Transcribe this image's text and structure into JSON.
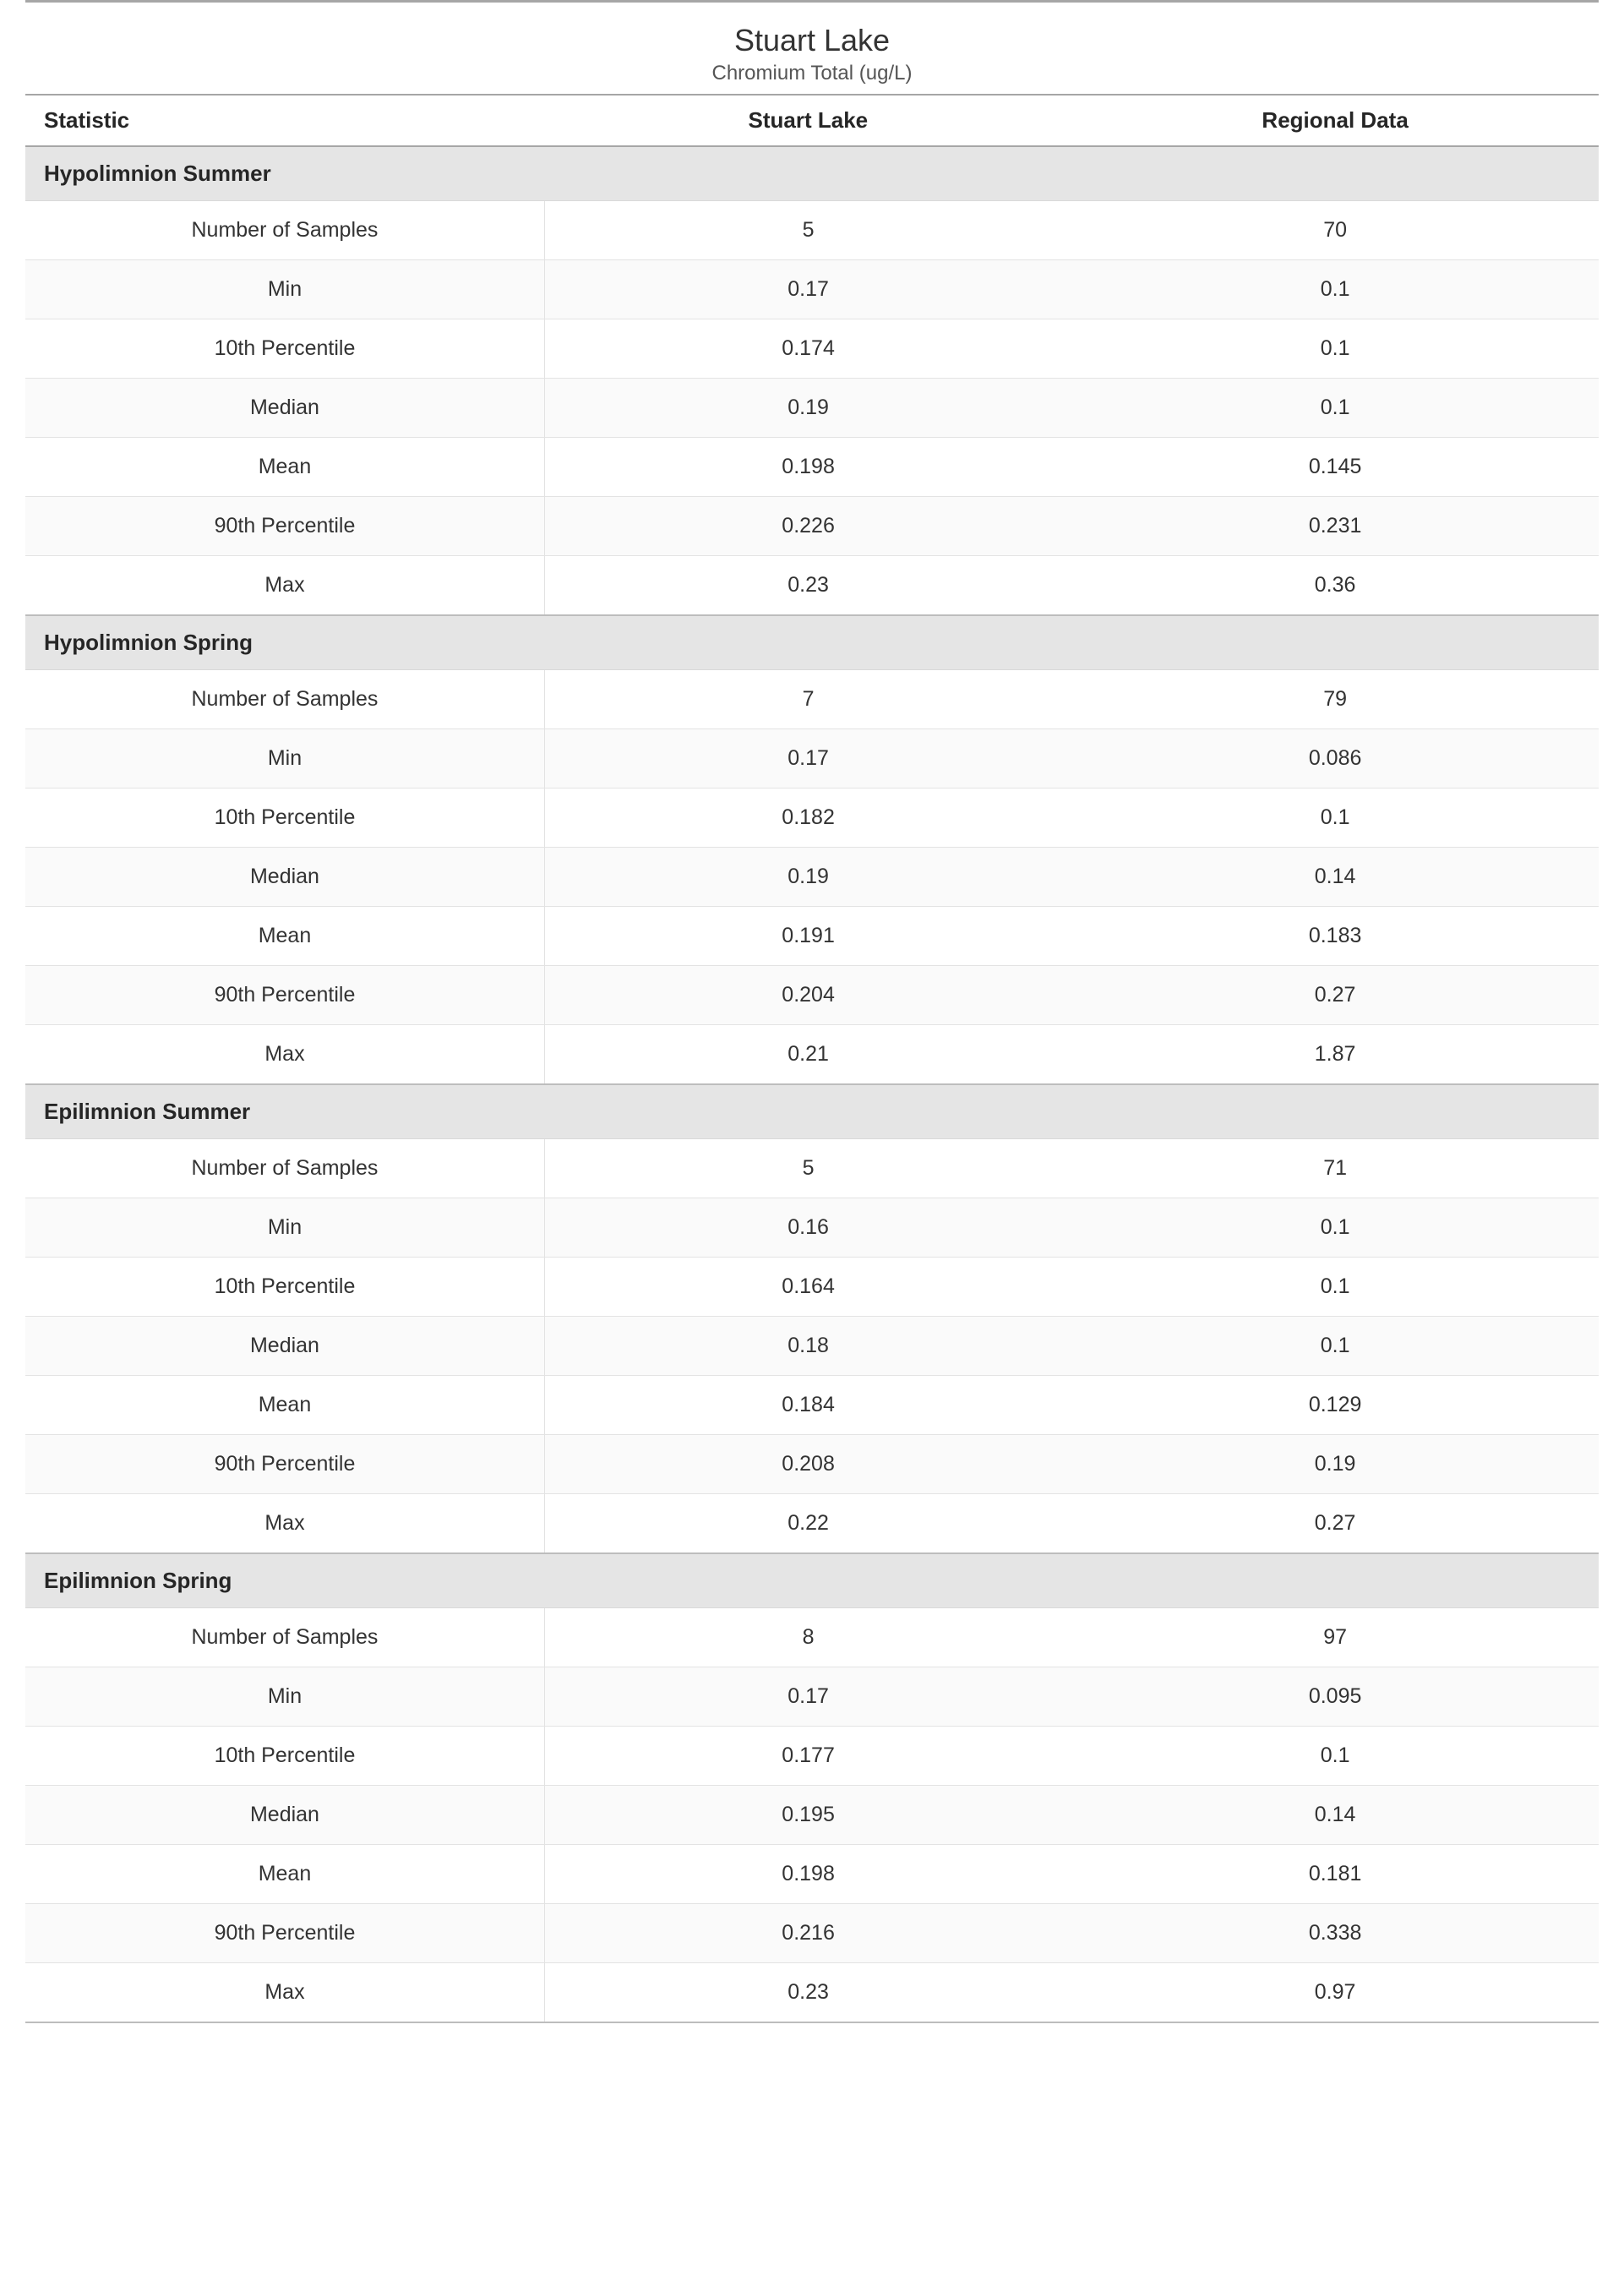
{
  "type": "table",
  "title": "Stuart Lake",
  "subtitle": "Chromium Total (ug/L)",
  "columns": [
    "Statistic",
    "Stuart Lake",
    "Regional Data"
  ],
  "column_alignment": [
    "left",
    "center",
    "center"
  ],
  "row_labels": [
    "Number of Samples",
    "Min",
    "10th Percentile",
    "Median",
    "Mean",
    "90th Percentile",
    "Max"
  ],
  "sections": [
    {
      "name": "Hypolimnion Summer",
      "rows": [
        [
          "5",
          "70"
        ],
        [
          "0.17",
          "0.1"
        ],
        [
          "0.174",
          "0.1"
        ],
        [
          "0.19",
          "0.1"
        ],
        [
          "0.198",
          "0.145"
        ],
        [
          "0.226",
          "0.231"
        ],
        [
          "0.23",
          "0.36"
        ]
      ]
    },
    {
      "name": "Hypolimnion Spring",
      "rows": [
        [
          "7",
          "79"
        ],
        [
          "0.17",
          "0.086"
        ],
        [
          "0.182",
          "0.1"
        ],
        [
          "0.19",
          "0.14"
        ],
        [
          "0.191",
          "0.183"
        ],
        [
          "0.204",
          "0.27"
        ],
        [
          "0.21",
          "1.87"
        ]
      ]
    },
    {
      "name": "Epilimnion Summer",
      "rows": [
        [
          "5",
          "71"
        ],
        [
          "0.16",
          "0.1"
        ],
        [
          "0.164",
          "0.1"
        ],
        [
          "0.18",
          "0.1"
        ],
        [
          "0.184",
          "0.129"
        ],
        [
          "0.208",
          "0.19"
        ],
        [
          "0.22",
          "0.27"
        ]
      ]
    },
    {
      "name": "Epilimnion Spring",
      "rows": [
        [
          "8",
          "97"
        ],
        [
          "0.17",
          "0.095"
        ],
        [
          "0.177",
          "0.1"
        ],
        [
          "0.195",
          "0.14"
        ],
        [
          "0.198",
          "0.181"
        ],
        [
          "0.216",
          "0.338"
        ],
        [
          "0.23",
          "0.97"
        ]
      ]
    }
  ],
  "colors": {
    "rule_top": "#a6a6a6",
    "rule_header": "#a6a6a6",
    "section_bg": "#e5e5e5",
    "row_alt_bg": "#fafafa",
    "row_bg": "#ffffff",
    "row_border": "#e3e3e3",
    "text": "#333333",
    "text_strong": "#262626",
    "subtitle_text": "#555555"
  },
  "typography": {
    "title_fontsize": 36,
    "subtitle_fontsize": 24,
    "header_fontsize": 26,
    "section_fontsize": 26,
    "cell_fontsize": 25,
    "header_weight": 700,
    "section_weight": 700,
    "cell_weight": 400
  }
}
